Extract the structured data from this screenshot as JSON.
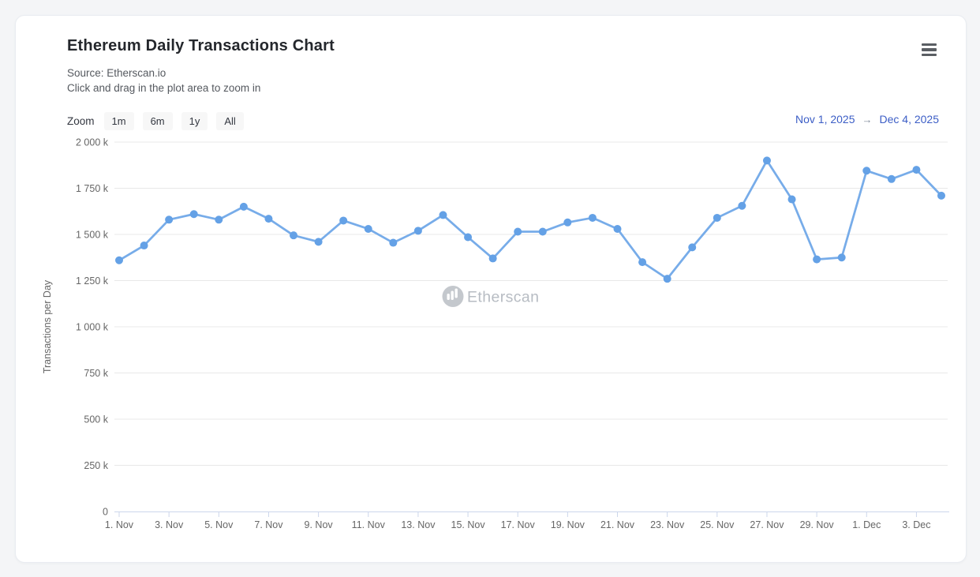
{
  "header": {
    "title": "Ethereum Daily Transactions Chart",
    "source_line": "Source: Etherscan.io",
    "hint_line": "Click and drag in the plot area to zoom in",
    "menu_icon": "hamburger-icon"
  },
  "toolbar": {
    "zoom_label": "Zoom",
    "zoom_buttons": [
      "1m",
      "6m",
      "1y",
      "All"
    ],
    "range": {
      "from": "Nov 1, 2025",
      "arrow": "→",
      "to": "Dec 4, 2025"
    }
  },
  "watermark": {
    "icon": "etherscan-logo",
    "label": "Etherscan"
  },
  "colors": {
    "line": "#77ace9",
    "marker": "#64a1e6",
    "gridline": "#e8e8e8",
    "axis_line": "#ccd6eb",
    "tick_label": "#666666",
    "range_text": "#3c5ec6",
    "watermark_text": "#b7bcc3",
    "card_background": "#ffffff",
    "page_background": "#f4f5f7"
  },
  "chart_data": {
    "type": "line",
    "title": "Ethereum Daily Transactions Chart",
    "xlabel": "",
    "ylabel": "Transactions per Day",
    "unit": "k (thousands of transactions per day)",
    "legend": "none",
    "grid": true,
    "x": [
      "Nov 1",
      "Nov 2",
      "Nov 3",
      "Nov 4",
      "Nov 5",
      "Nov 6",
      "Nov 7",
      "Nov 8",
      "Nov 9",
      "Nov 10",
      "Nov 11",
      "Nov 12",
      "Nov 13",
      "Nov 14",
      "Nov 15",
      "Nov 16",
      "Nov 17",
      "Nov 18",
      "Nov 19",
      "Nov 20",
      "Nov 21",
      "Nov 22",
      "Nov 23",
      "Nov 24",
      "Nov 25",
      "Nov 26",
      "Nov 27",
      "Nov 28",
      "Nov 29",
      "Nov 30",
      "Dec 1",
      "Dec 2",
      "Dec 3",
      "Dec 4"
    ],
    "values_k": [
      1360,
      1440,
      1580,
      1610,
      1580,
      1650,
      1585,
      1495,
      1460,
      1575,
      1530,
      1455,
      1520,
      1605,
      1485,
      1370,
      1515,
      1515,
      1565,
      1590,
      1530,
      1350,
      1260,
      1430,
      1590,
      1655,
      1900,
      1690,
      1365,
      1375,
      1845,
      1800,
      1850,
      1710
    ],
    "ylim_k": [
      0,
      2000
    ],
    "yticks_k": [
      0,
      250,
      500,
      750,
      1000,
      1250,
      1500,
      1750,
      2000
    ],
    "ytick_labels": [
      "0",
      "250 k",
      "500 k",
      "750 k",
      "1 000 k",
      "1 250 k",
      "1 500 k",
      "1 750 k",
      "2 000 k"
    ],
    "xtick_labels": [
      "1. Nov",
      "3. Nov",
      "5. Nov",
      "7. Nov",
      "9. Nov",
      "11. Nov",
      "13. Nov",
      "15. Nov",
      "17. Nov",
      "19. Nov",
      "21. Nov",
      "23. Nov",
      "25. Nov",
      "27. Nov",
      "29. Nov",
      "1. Dec",
      "3. Dec"
    ],
    "xtick_step": 2
  }
}
